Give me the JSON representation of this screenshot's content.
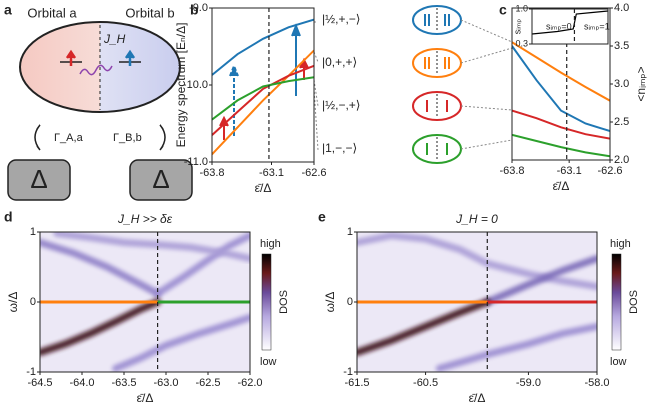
{
  "panel_labels": [
    "a",
    "b",
    "c",
    "d",
    "e"
  ],
  "schematic": {
    "orbital_a": "Orbital a",
    "orbital_b": "Orbital b",
    "coupling": "J_H",
    "gamma_a": "Γ_A,a",
    "gamma_b": "Γ_B,b",
    "lead_a": "Δ",
    "lead_b": "Δ"
  },
  "chart_data": [
    {
      "type": "line",
      "xlabel": "ε̄/Δ",
      "ylabel": "Energy spectrum [Eₙ/Δ]",
      "xlim": [
        -63.8,
        -62.6
      ],
      "xticks": [
        -63.8,
        -63.1,
        -62.6
      ],
      "ylim": [
        -11,
        -9
      ],
      "yticks": [
        {
          "value": -11,
          "label": "-11.0"
        },
        {
          "value": -10,
          "label": "-10.0"
        },
        {
          "value": -9,
          "label": "-9.0"
        }
      ],
      "vline": -63.13,
      "x": [
        -63.8,
        -63.5,
        -63.2,
        -62.9,
        -62.6
      ],
      "series": [
        {
          "name": "|½,+,−⟩",
          "color": "#1f77b4",
          "values": [
            -9.87,
            -9.6,
            -9.4,
            -9.25,
            -9.15
          ]
        },
        {
          "name": "|0,+,+⟩",
          "color": "#ff7f0e",
          "values": [
            -10.9,
            -10.55,
            -10.2,
            -9.88,
            -9.55
          ]
        },
        {
          "name": "|½,−,+⟩",
          "color": "#d62728",
          "values": [
            -10.65,
            -10.35,
            -10.05,
            -9.88,
            -9.75
          ]
        },
        {
          "name": "|1,−,−⟩",
          "color": "#2ca02c",
          "values": [
            -10.45,
            -10.2,
            -10.02,
            -9.95,
            -9.9
          ]
        }
      ]
    },
    {
      "type": "line",
      "xlabel": "ε̄/Δ",
      "ylabel": "<nᵢₘₚ>",
      "y_side": "right",
      "xlim": [
        -63.8,
        -62.6
      ],
      "xticks": [
        -63.8,
        -63.1,
        -62.6
      ],
      "ylim": [
        2,
        4
      ],
      "yticks": [
        {
          "value": 2,
          "label": "2.0"
        },
        2.5,
        {
          "value": 3,
          "label": "3.0"
        },
        3.5,
        {
          "value": 4,
          "label": "4.0"
        }
      ],
      "vline": -63.13,
      "x": [
        -63.8,
        -63.5,
        -63.2,
        -62.9,
        -62.6
      ],
      "series": [
        {
          "color": "#ff7f0e",
          "values": [
            3.55,
            3.35,
            3.15,
            2.96,
            2.78
          ]
        },
        {
          "color": "#1f77b4",
          "values": [
            3.5,
            3.05,
            2.65,
            2.48,
            2.38
          ]
        },
        {
          "color": "#d62728",
          "values": [
            2.65,
            2.55,
            2.43,
            2.34,
            2.28
          ]
        },
        {
          "color": "#2ca02c",
          "values": [
            2.33,
            2.25,
            2.17,
            2.1,
            2.05
          ]
        }
      ]
    },
    {
      "type": "line",
      "ylabel": "sᵢₘₚ",
      "xlim": [
        -63.8,
        -62.6
      ],
      "ylim": [
        0.3,
        1
      ],
      "yticks": [
        0.3,
        {
          "value": 1,
          "label": "1.0"
        }
      ],
      "vline": -63.13,
      "x": [
        -63.8,
        -63.4,
        -63.15,
        -63.1,
        -62.85,
        -62.6
      ],
      "series": [
        {
          "color": "#000000",
          "values": [
            0.5,
            0.55,
            0.6,
            0.9,
            0.93,
            0.96
          ]
        }
      ],
      "annotations": [
        {
          "text": "sᵢₘₚ=0",
          "color": "#ff7f0e"
        },
        {
          "text": "sᵢₘₚ=1",
          "color": "#2ca02c"
        }
      ]
    },
    {
      "type": "heatmap",
      "title": "J_H >> δε",
      "xlabel": "ε̄/Δ",
      "ylabel": "ω/Δ",
      "xlim": [
        -64.5,
        -62
      ],
      "xticks": [
        -64.5,
        {
          "value": -64,
          "label": "-64.0"
        },
        -63.5,
        {
          "value": -63,
          "label": "-63.0"
        },
        -62.5,
        {
          "value": -62,
          "label": "-62.0"
        }
      ],
      "ylim": [
        -1,
        1
      ],
      "yticks": [
        -1,
        0,
        1
      ],
      "vline": -63.1,
      "colorbar": {
        "label": "DOS",
        "high": "high",
        "low": "low"
      },
      "bands": [
        {
          "color": "#8f80c8",
          "x": [
            -64.5,
            -64.1,
            -63.7,
            -63.3,
            -63.1
          ],
          "values": [
            0.85,
            0.7,
            0.5,
            0.25,
            0.12
          ]
        },
        {
          "color": "#9a8bd0",
          "x": [
            -63.1,
            -62.8,
            -62.5,
            -62.25,
            -62.0
          ],
          "values": [
            0.12,
            0.35,
            0.6,
            0.8,
            0.95
          ]
        },
        {
          "color": "#a99cd6",
          "x": [
            -64.3,
            -63.9,
            -63.5,
            -63.1,
            -62.7,
            -62.3,
            -62.0
          ],
          "values": [
            0.98,
            0.92,
            0.85,
            0.82,
            0.78,
            0.7,
            0.62
          ]
        },
        {
          "color": "#9a8bd0",
          "x": [
            -63.6,
            -63.3,
            -63.0,
            -62.6,
            -62.2,
            -62.0
          ],
          "values": [
            -0.95,
            -0.8,
            -0.62,
            -0.45,
            -0.3,
            -0.22
          ]
        },
        {
          "color": "#3a0f14",
          "x": [
            -64.5,
            -64.2,
            -63.9,
            -63.6,
            -63.3,
            -63.1
          ],
          "values": [
            -0.72,
            -0.6,
            -0.45,
            -0.28,
            -0.1,
            0
          ]
        }
      ],
      "series": [
        {
          "color": "#ff7f0e",
          "x": [
            -64.5,
            -63.1
          ],
          "values": [
            0,
            0
          ]
        },
        {
          "color": "#2ca02c",
          "x": [
            -63.1,
            -62.0
          ],
          "values": [
            0,
            0
          ]
        }
      ]
    },
    {
      "type": "heatmap",
      "title": "J_H = 0",
      "xlabel": "ε̄/Δ",
      "ylabel": "ω/Δ",
      "xlim": [
        -61.5,
        -58
      ],
      "xticks": [
        -61.5,
        -60.5,
        {
          "value": -59,
          "label": "-59.0"
        },
        {
          "value": -58,
          "label": "-58.0"
        }
      ],
      "ylim": [
        -1,
        1
      ],
      "yticks": [
        -1,
        0,
        1
      ],
      "vline": -59.6,
      "colorbar": {
        "label": "DOS",
        "high": "high",
        "low": "low"
      },
      "bands": [
        {
          "color": "#a99cd6",
          "x": [
            -61.5,
            -61.0,
            -60.5,
            -60.0,
            -59.6,
            -59.0,
            -58.5,
            -58.0
          ],
          "values": [
            0.85,
            0.95,
            0.9,
            0.75,
            0.55,
            0.4,
            0.3,
            0.22
          ]
        },
        {
          "color": "#7a6ab8",
          "x": [
            -59.6,
            -59.0,
            -58.5,
            -58.0
          ],
          "values": [
            0,
            0.25,
            0.45,
            0.62
          ]
        },
        {
          "color": "#9a8bd0",
          "x": [
            -60.3,
            -59.6,
            -59.0,
            -58.5,
            -58.0
          ],
          "values": [
            -0.95,
            -0.75,
            -0.6,
            -0.45,
            -0.35
          ]
        },
        {
          "color": "#3a0f14",
          "x": [
            -61.5,
            -61.0,
            -60.5,
            -60.0,
            -59.6
          ],
          "values": [
            -0.72,
            -0.55,
            -0.35,
            -0.15,
            0
          ]
        }
      ],
      "series": [
        {
          "color": "#ff7f0e",
          "x": [
            -61.5,
            -59.6
          ],
          "values": [
            0,
            0
          ]
        },
        {
          "color": "#d62728",
          "x": [
            -59.6,
            -58.0
          ],
          "values": [
            0,
            0
          ]
        }
      ]
    }
  ]
}
